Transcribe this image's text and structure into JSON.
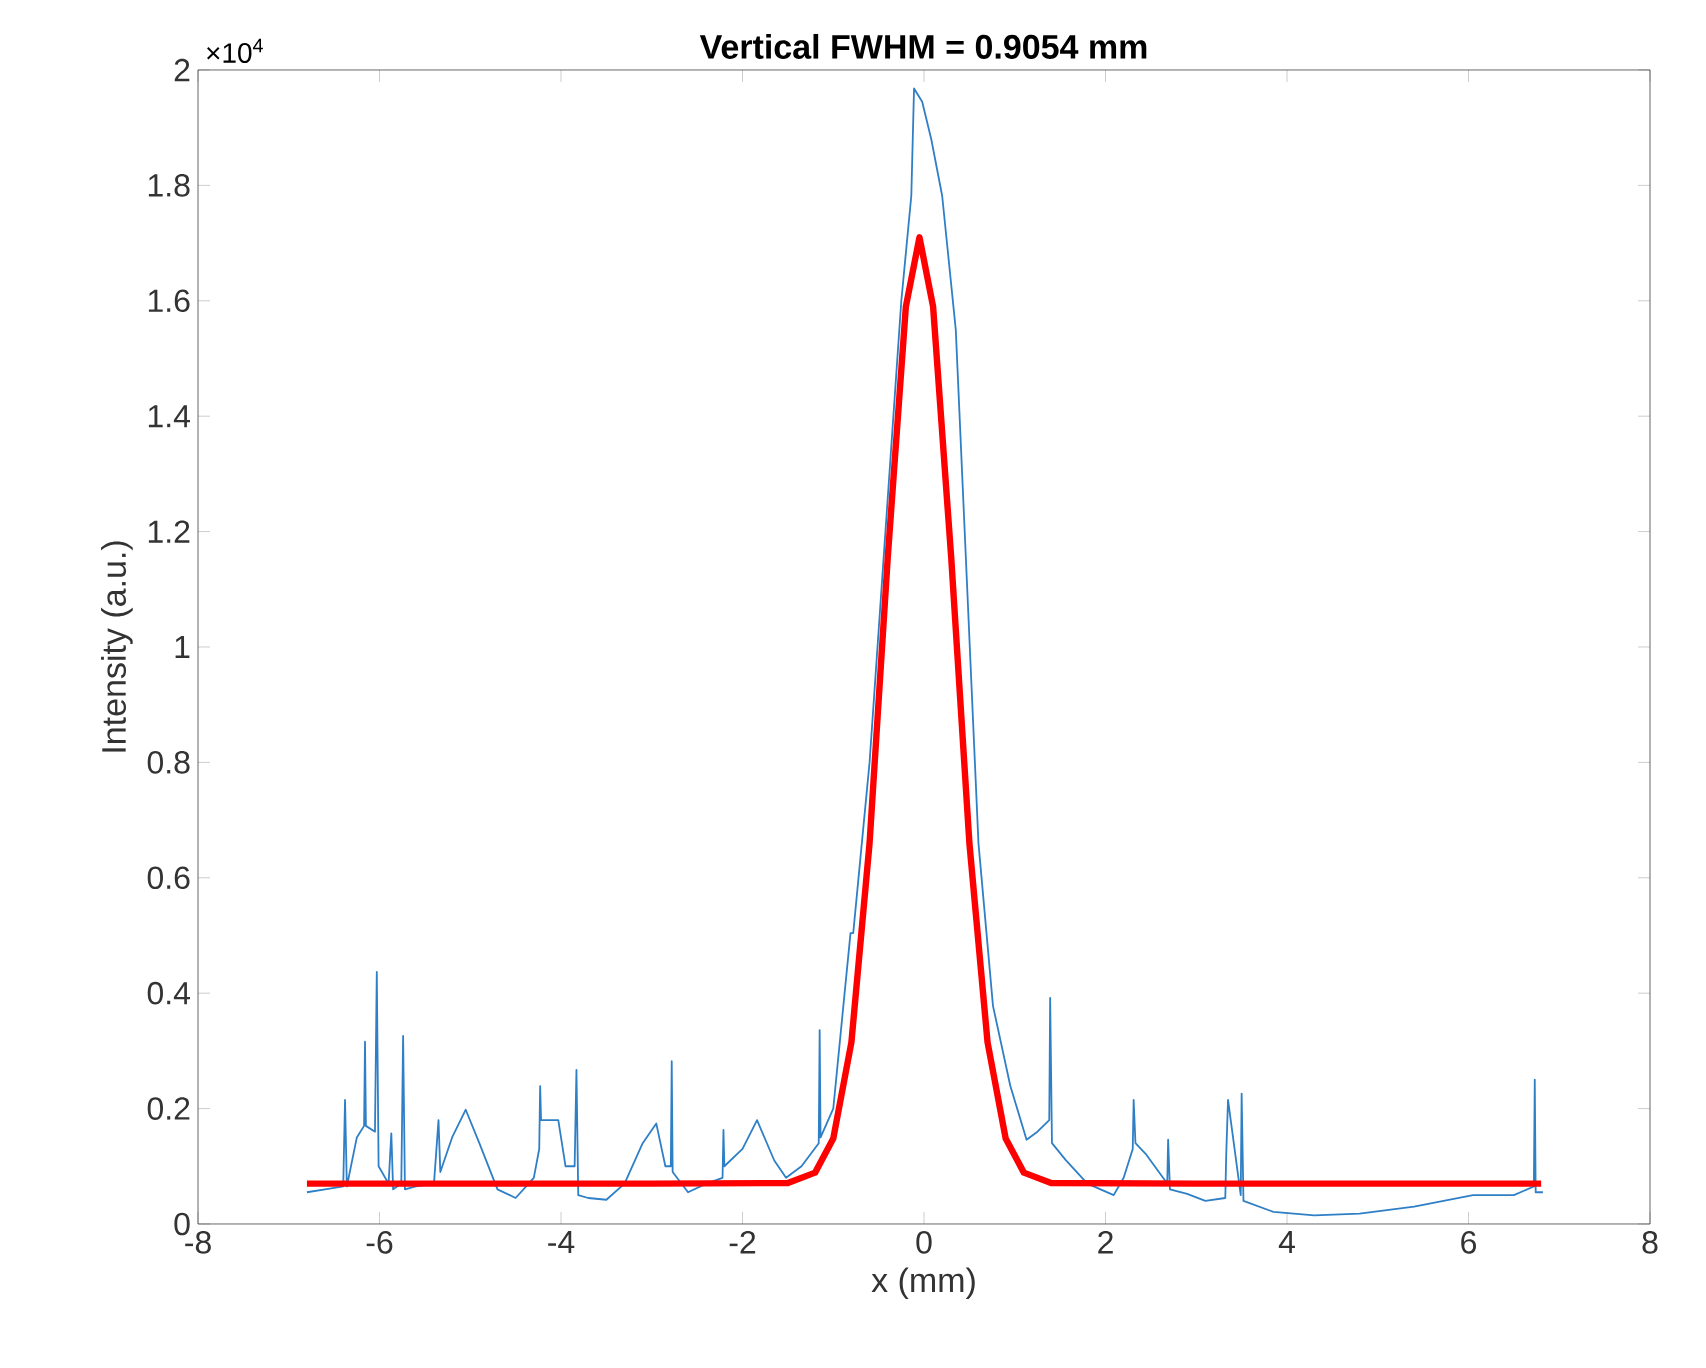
{
  "chart_data": {
    "type": "line",
    "title": "Vertical FWHM = 0.9054 mm",
    "xlabel": "x (mm)",
    "ylabel": "Intensity (a.u.)",
    "annotations": [
      "×10$^{4}$"
    ],
    "xlim": [
      -8,
      8
    ],
    "xticks": [
      -8,
      -6,
      -4,
      -2,
      0,
      2,
      4,
      6,
      8
    ],
    "ylim": [
      0,
      2
    ],
    "yticks": [
      0,
      0.2,
      0.4,
      0.6,
      0.8,
      1,
      1.2,
      1.4,
      1.6,
      1.8,
      2
    ],
    "grid": false,
    "marker": "none",
    "line_style": "solid",
    "series": [
      {
        "color": "#2f7fc6",
        "x": [
          -6.8,
          -6.6,
          -6.4,
          -6.38,
          -6.36,
          -6.25,
          -6.17,
          -6.16,
          -6.15,
          -6.05,
          -6.03,
          -6.01,
          -5.9,
          -5.87,
          -5.85,
          -5.76,
          -5.74,
          -5.72,
          -5.6,
          -5.4,
          -5.35,
          -5.33,
          -5.2,
          -5.05,
          -4.9,
          -4.7,
          -4.5,
          -4.3,
          -4.24,
          -4.23,
          -4.22,
          -4.1,
          -4.03,
          -3.95,
          -3.85,
          -3.83,
          -3.81,
          -3.7,
          -3.5,
          -3.3,
          -3.1,
          -2.95,
          -2.85,
          -2.79,
          -2.78,
          -2.77,
          -2.6,
          -2.4,
          -2.22,
          -2.21,
          -2.2,
          -2.0,
          -1.84,
          -1.65,
          -1.52,
          -1.35,
          -1.16,
          -1.15,
          -1.14,
          -1.0,
          -0.81,
          -0.78,
          -0.6,
          -0.4,
          -0.25,
          -0.14,
          -0.11,
          -0.02,
          0.08,
          0.2,
          0.35,
          0.6,
          0.76,
          0.95,
          1.13,
          1.25,
          1.38,
          1.39,
          1.41,
          1.56,
          1.8,
          2.09,
          2.2,
          2.3,
          2.31,
          2.33,
          2.45,
          2.68,
          2.69,
          2.71,
          2.9,
          3.1,
          3.32,
          3.33,
          3.35,
          3.49,
          3.5,
          3.52,
          3.85,
          4.3,
          4.8,
          5.4,
          6.05,
          6.5,
          6.72,
          6.73,
          6.74,
          6.82
        ],
        "values": [
          0.055,
          0.06,
          0.065,
          0.215,
          0.065,
          0.15,
          0.17,
          0.316,
          0.17,
          0.16,
          0.437,
          0.1,
          0.07,
          0.157,
          0.06,
          0.07,
          0.326,
          0.06,
          0.065,
          0.07,
          0.18,
          0.09,
          0.15,
          0.198,
          0.14,
          0.06,
          0.045,
          0.08,
          0.13,
          0.239,
          0.18,
          0.18,
          0.18,
          0.1,
          0.1,
          0.267,
          0.05,
          0.045,
          0.042,
          0.07,
          0.14,
          0.174,
          0.1,
          0.1,
          0.282,
          0.09,
          0.055,
          0.07,
          0.08,
          0.163,
          0.1,
          0.13,
          0.18,
          0.11,
          0.08,
          0.1,
          0.14,
          0.336,
          0.15,
          0.2,
          0.504,
          0.504,
          0.8,
          null,
          1.6,
          1.782,
          1.968,
          1.945,
          1.88,
          1.782,
          1.55,
          0.66,
          0.378,
          0.24,
          0.146,
          0.16,
          0.18,
          0.392,
          0.14,
          0.111,
          0.07,
          0.05,
          0.08,
          0.13,
          0.215,
          0.14,
          0.12,
          0.07,
          0.146,
          0.06,
          0.052,
          0.04,
          0.045,
          0.12,
          0.215,
          0.05,
          0.226,
          0.04,
          0.021,
          0.015,
          0.018,
          0.03,
          0.05,
          0.05,
          0.065,
          0.25,
          0.055,
          0.055
        ]
      },
      {
        "color": "#ff0000",
        "x": [
          -6.8,
          -3,
          -1.5,
          -1.2,
          -1.0,
          -0.8,
          -0.6,
          -0.4,
          -0.2,
          -0.05,
          0.1,
          0.3,
          0.5,
          0.7,
          0.9,
          1.1,
          1.4,
          3,
          6.8
        ],
        "values": [
          0.07,
          0.07,
          0.071,
          0.089,
          0.148,
          0.315,
          0.66,
          1.154,
          1.59,
          1.71,
          1.59,
          1.154,
          0.66,
          0.315,
          0.148,
          0.089,
          0.071,
          0.07,
          0.07
        ]
      }
    ]
  }
}
